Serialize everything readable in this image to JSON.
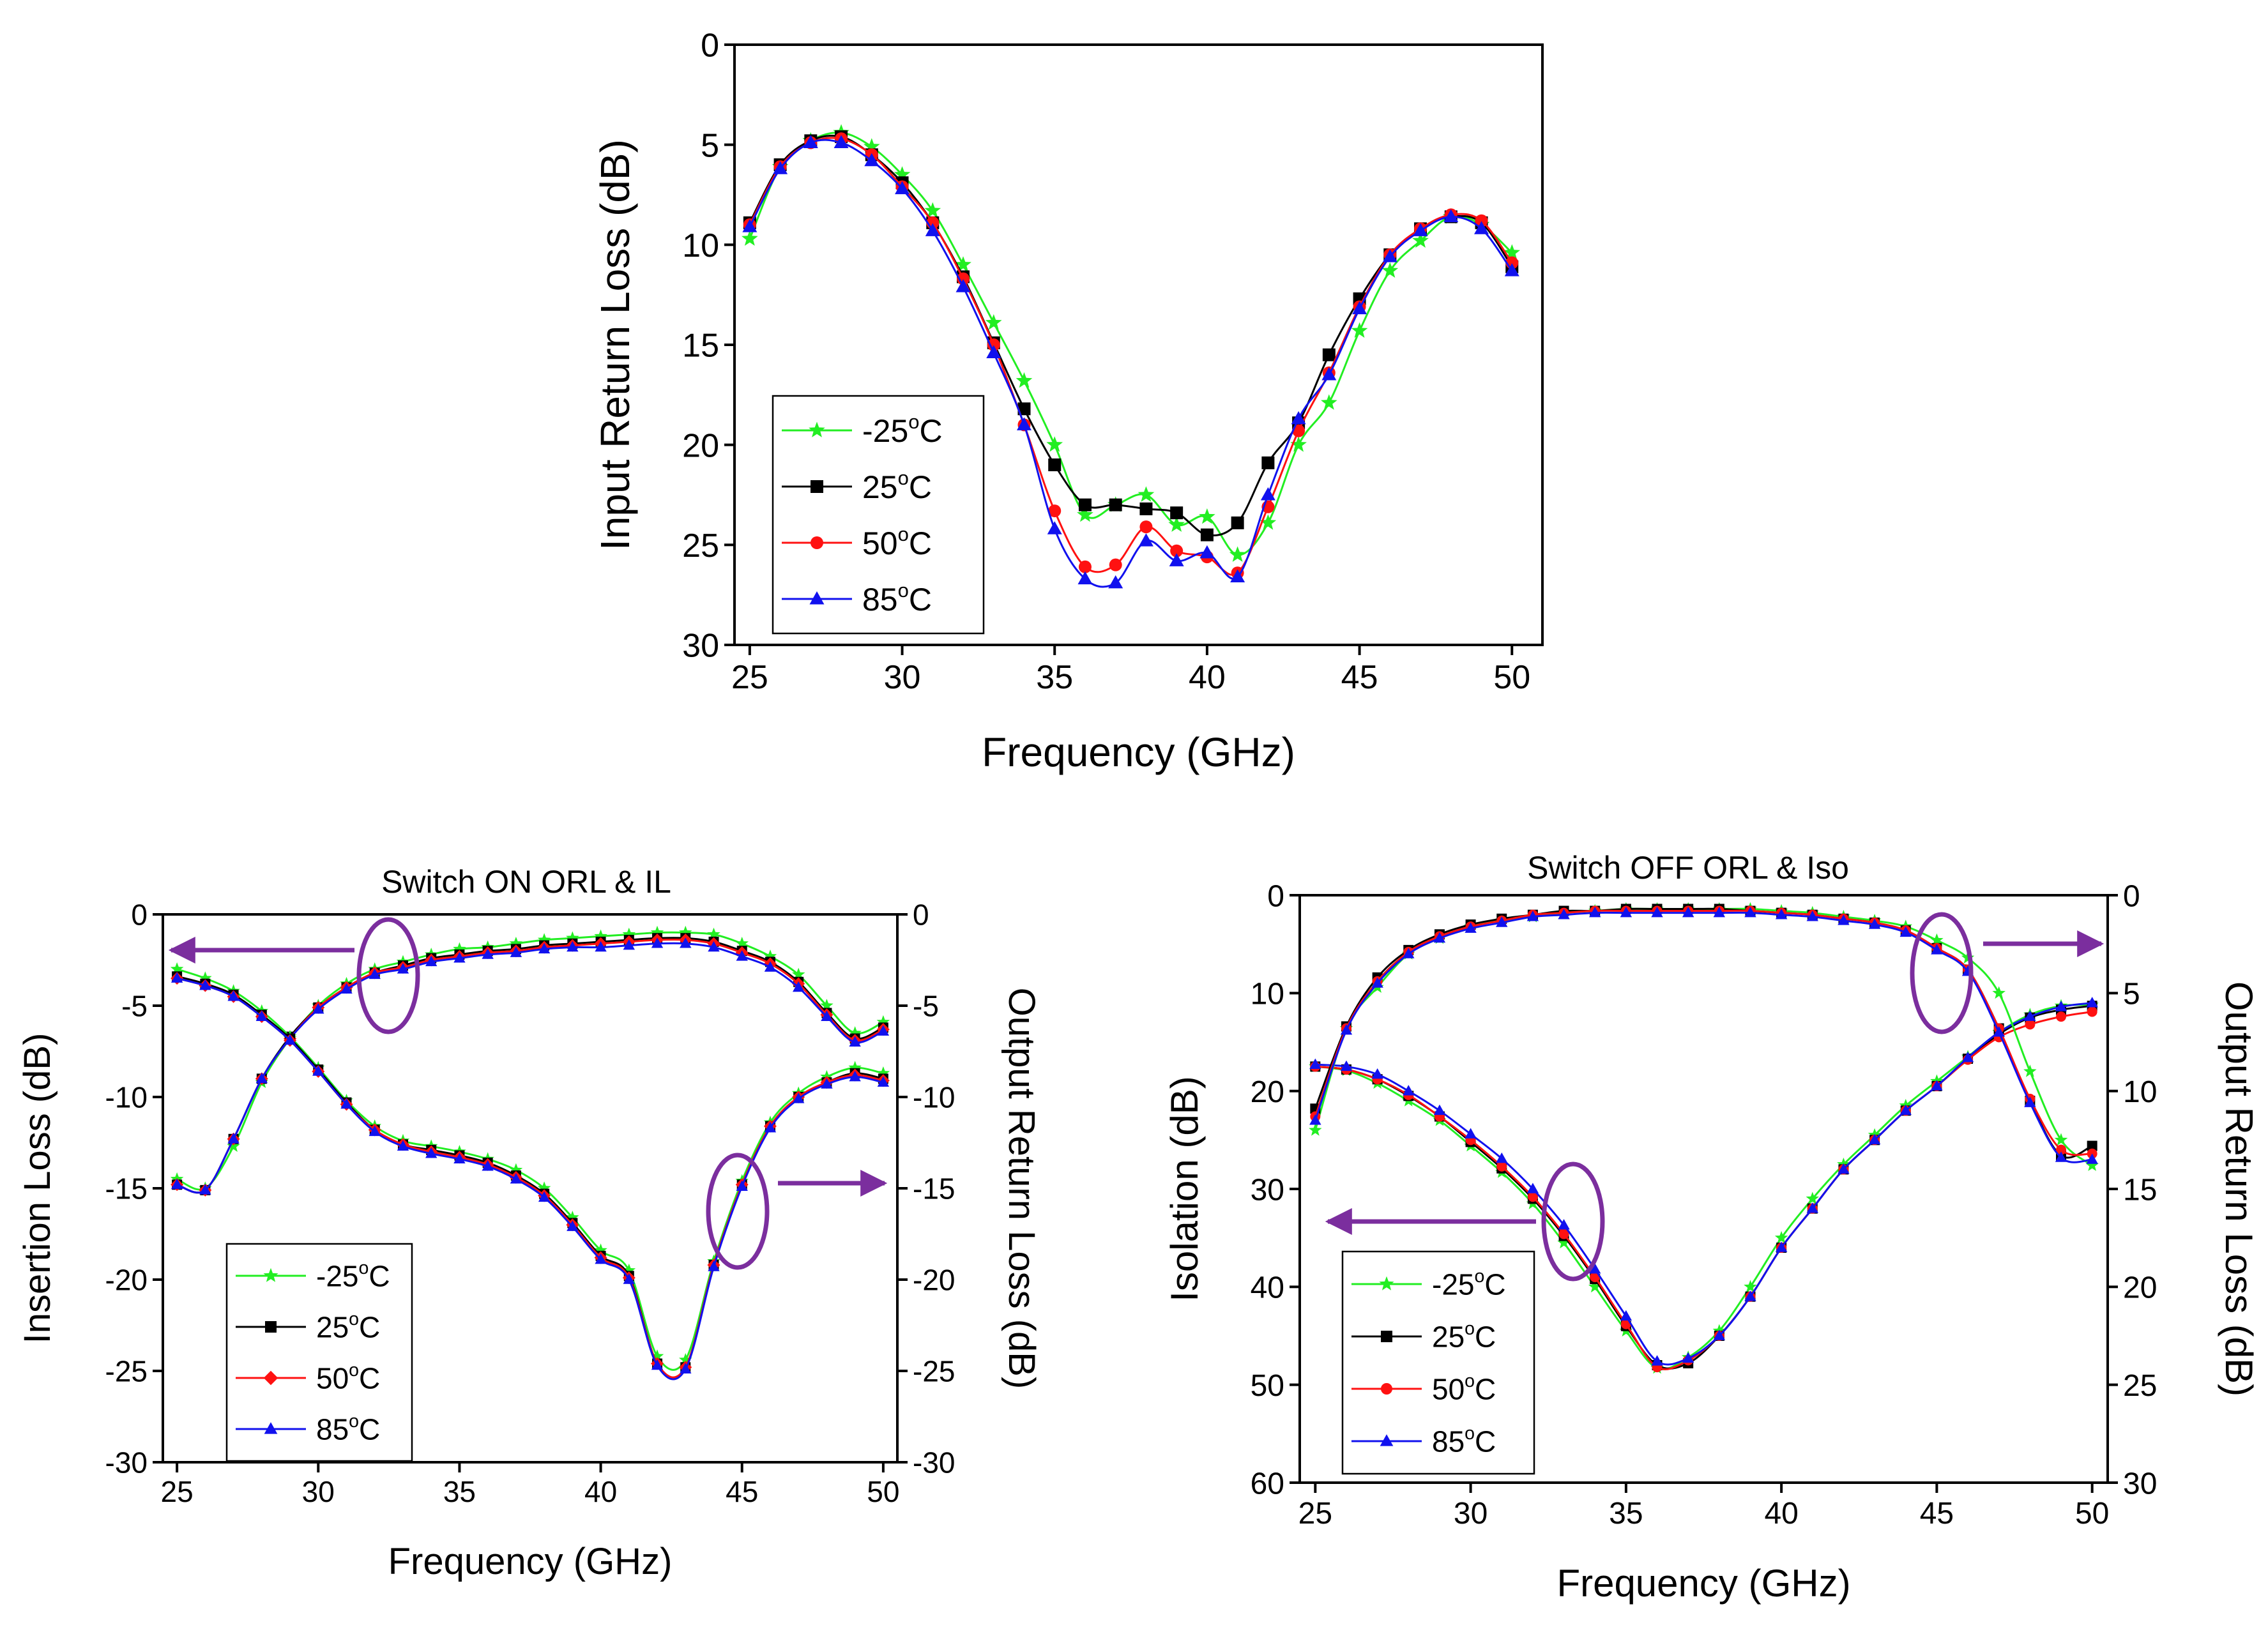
{
  "colors": {
    "c_m25": "#22ee22",
    "c_25": "#000000",
    "c_50": "#ff1111",
    "c_85": "#1111ee",
    "annotation": "#7b2e9e"
  },
  "chart_data": [
    {
      "id": "irl",
      "type": "line",
      "title": "",
      "xlabel": "Frequency (GHz)",
      "ylabel": "Input Return Loss (dB)",
      "xlim": [
        24.5,
        51
      ],
      "ylim": [
        0,
        30
      ],
      "y_inverted": true,
      "xticks": [
        25,
        30,
        35,
        40,
        45,
        50
      ],
      "yticks": [
        0,
        5,
        10,
        15,
        20,
        25,
        30
      ],
      "legend_position": "bottom-left",
      "x": [
        25,
        26,
        27,
        28,
        29,
        30,
        31,
        32,
        33,
        34,
        35,
        36,
        37,
        38,
        39,
        40,
        41,
        42,
        43,
        44,
        45,
        46,
        47,
        48,
        49,
        50
      ],
      "series": [
        {
          "name": "-25°C",
          "color_key": "c_m25",
          "marker": "star",
          "values": [
            9.7,
            6.1,
            4.8,
            4.4,
            5.1,
            6.5,
            8.3,
            11.0,
            13.9,
            16.8,
            20.0,
            23.5,
            23.0,
            22.5,
            24.0,
            23.6,
            25.5,
            23.9,
            20.0,
            17.9,
            14.3,
            11.3,
            9.8,
            8.6,
            9.0,
            10.4
          ]
        },
        {
          "name": "25°C",
          "color_key": "c_25",
          "marker": "square",
          "values": [
            8.9,
            6.0,
            4.8,
            4.6,
            5.5,
            6.9,
            8.9,
            11.6,
            14.9,
            18.2,
            21.0,
            23.0,
            23.0,
            23.2,
            23.4,
            24.5,
            23.9,
            20.9,
            18.9,
            15.5,
            12.7,
            10.5,
            9.2,
            8.6,
            8.9,
            11.1
          ]
        },
        {
          "name": "50°C",
          "color_key": "c_50",
          "marker": "circle",
          "values": [
            9.0,
            6.1,
            4.9,
            4.7,
            5.5,
            7.1,
            8.9,
            11.7,
            15.0,
            19.0,
            23.3,
            26.1,
            26.0,
            24.1,
            25.3,
            25.6,
            26.4,
            23.1,
            19.3,
            16.4,
            13.1,
            10.5,
            9.2,
            8.5,
            8.8,
            10.9
          ]
        },
        {
          "name": "85°C",
          "color_key": "c_85",
          "marker": "triangle",
          "values": [
            9.1,
            6.2,
            4.9,
            4.9,
            5.8,
            7.2,
            9.3,
            12.1,
            15.4,
            19.0,
            24.2,
            26.7,
            26.9,
            24.8,
            25.8,
            25.4,
            26.6,
            22.5,
            18.7,
            16.5,
            13.2,
            10.6,
            9.3,
            8.6,
            9.2,
            11.3
          ]
        }
      ]
    },
    {
      "id": "on",
      "type": "line",
      "title": "Switch ON ORL & IL",
      "xlabel": "Frequency (GHz)",
      "ylabel_left": "Insertion Loss (dB)",
      "ylabel_right": "Output Return Loss (dB)",
      "xlim": [
        24.5,
        50.5
      ],
      "ylim_left": [
        -30,
        0
      ],
      "ylim_right": [
        -30,
        0
      ],
      "xticks": [
        25,
        30,
        35,
        40,
        45,
        50
      ],
      "yticks_left": [
        0,
        -5,
        -10,
        -15,
        -20,
        -25,
        -30
      ],
      "yticks_right": [
        0,
        -5,
        -10,
        -15,
        -20,
        -25,
        -30
      ],
      "legend_position": "bottom-left",
      "x": [
        25,
        26,
        27,
        28,
        29,
        30,
        31,
        32,
        33,
        34,
        35,
        36,
        37,
        38,
        39,
        40,
        41,
        42,
        43,
        44,
        45,
        46,
        47,
        48,
        49,
        50
      ],
      "il_series": [
        {
          "name": "-25°C",
          "color_key": "c_m25",
          "marker": "star",
          "values": [
            -14.5,
            -15.0,
            -12.7,
            -9.2,
            -6.8,
            -5.0,
            -3.8,
            -3.0,
            -2.6,
            -2.2,
            -1.9,
            -1.8,
            -1.6,
            -1.4,
            -1.3,
            -1.2,
            -1.1,
            -1.0,
            -1.0,
            -1.1,
            -1.6,
            -2.3,
            -3.3,
            -5.0,
            -6.5,
            -5.9
          ]
        },
        {
          "name": "25°C",
          "color_key": "c_25",
          "marker": "square",
          "values": [
            -14.8,
            -15.1,
            -12.3,
            -9.0,
            -6.7,
            -5.1,
            -4.0,
            -3.2,
            -2.8,
            -2.4,
            -2.2,
            -2.0,
            -1.9,
            -1.7,
            -1.6,
            -1.5,
            -1.4,
            -1.3,
            -1.3,
            -1.5,
            -2.0,
            -2.6,
            -3.7,
            -5.4,
            -6.8,
            -6.2
          ]
        },
        {
          "name": "50°C",
          "color_key": "c_50",
          "marker": "diamond",
          "values": [
            -14.8,
            -15.1,
            -12.3,
            -9.0,
            -6.8,
            -5.1,
            -4.0,
            -3.2,
            -2.9,
            -2.5,
            -2.3,
            -2.1,
            -2.0,
            -1.8,
            -1.7,
            -1.6,
            -1.5,
            -1.4,
            -1.4,
            -1.6,
            -2.1,
            -2.7,
            -3.8,
            -5.5,
            -6.9,
            -6.3
          ]
        },
        {
          "name": "85°C",
          "color_key": "c_85",
          "marker": "triangle",
          "values": [
            -14.8,
            -15.1,
            -12.3,
            -9.0,
            -6.8,
            -5.2,
            -4.1,
            -3.3,
            -3.0,
            -2.6,
            -2.4,
            -2.2,
            -2.1,
            -1.9,
            -1.8,
            -1.8,
            -1.7,
            -1.6,
            -1.6,
            -1.8,
            -2.3,
            -2.9,
            -4.0,
            -5.6,
            -7.0,
            -6.4
          ]
        }
      ],
      "orl_series": [
        {
          "name": "-25°C",
          "color_key": "c_m25",
          "marker": "star",
          "values": [
            -3.0,
            -3.5,
            -4.2,
            -5.3,
            -6.7,
            -8.4,
            -10.2,
            -11.6,
            -12.4,
            -12.7,
            -13.0,
            -13.4,
            -14.0,
            -15.0,
            -16.6,
            -18.4,
            -19.5,
            -24.2,
            -24.4,
            -19.0,
            -14.6,
            -11.4,
            -9.8,
            -8.9,
            -8.4,
            -8.7
          ]
        },
        {
          "name": "25°C",
          "color_key": "c_25",
          "marker": "square",
          "values": [
            -3.4,
            -3.8,
            -4.4,
            -5.5,
            -6.8,
            -8.5,
            -10.3,
            -11.8,
            -12.6,
            -12.9,
            -13.2,
            -13.6,
            -14.3,
            -15.3,
            -16.9,
            -18.7,
            -19.8,
            -24.6,
            -24.8,
            -19.2,
            -14.8,
            -11.6,
            -10.0,
            -9.2,
            -8.7,
            -9.0
          ]
        },
        {
          "name": "50°C",
          "color_key": "c_50",
          "marker": "diamond",
          "values": [
            -3.5,
            -3.9,
            -4.5,
            -5.6,
            -6.9,
            -8.6,
            -10.4,
            -11.8,
            -12.6,
            -13.0,
            -13.3,
            -13.7,
            -14.4,
            -15.4,
            -17.0,
            -18.8,
            -19.9,
            -24.6,
            -24.8,
            -19.2,
            -14.8,
            -11.6,
            -10.0,
            -9.2,
            -8.8,
            -9.1
          ]
        },
        {
          "name": "85°C",
          "color_key": "c_85",
          "marker": "triangle",
          "values": [
            -3.5,
            -3.9,
            -4.5,
            -5.6,
            -6.9,
            -8.6,
            -10.4,
            -11.9,
            -12.7,
            -13.1,
            -13.4,
            -13.8,
            -14.5,
            -15.5,
            -17.1,
            -18.9,
            -20.0,
            -24.7,
            -24.9,
            -19.3,
            -14.9,
            -11.7,
            -10.1,
            -9.3,
            -8.9,
            -9.2
          ]
        }
      ]
    },
    {
      "id": "off",
      "type": "line",
      "title": "Switch OFF ORL & Iso",
      "xlabel": "Frequency (GHz)",
      "ylabel_left": "Isolation (dB)",
      "ylabel_right": "Output Return Loss (dB)",
      "xlim": [
        24.5,
        50.5
      ],
      "ylim_left": [
        0,
        60
      ],
      "ylim_right": [
        0,
        30
      ],
      "y_inverted": true,
      "xticks": [
        25,
        30,
        35,
        40,
        45,
        50
      ],
      "yticks_left": [
        0,
        10,
        20,
        30,
        40,
        50,
        60
      ],
      "yticks_right": [
        0,
        5,
        10,
        15,
        20,
        25,
        30
      ],
      "legend_position": "bottom-left",
      "x": [
        25,
        26,
        27,
        28,
        29,
        30,
        31,
        32,
        33,
        34,
        35,
        36,
        37,
        38,
        39,
        40,
        41,
        42,
        43,
        44,
        45,
        46,
        47,
        48,
        49,
        50
      ],
      "iso_series": [
        {
          "name": "-25°C",
          "color_key": "c_m25",
          "marker": "star",
          "values": [
            17.5,
            17.9,
            19.2,
            21.0,
            23.0,
            25.6,
            28.3,
            31.5,
            35.5,
            40.0,
            44.5,
            48.3,
            47.2,
            44.5,
            40.0,
            35.0,
            31.0,
            27.5,
            24.5,
            21.5,
            19.0,
            16.5,
            14.0,
            12.2,
            11.3,
            11.2
          ]
        },
        {
          "name": "25°C",
          "color_key": "c_25",
          "marker": "square",
          "values": [
            17.5,
            17.8,
            18.8,
            20.5,
            22.6,
            25.2,
            27.9,
            31.0,
            34.8,
            39.2,
            44.0,
            48.0,
            47.8,
            45.0,
            41.0,
            36.0,
            32.0,
            28.0,
            25.0,
            22.0,
            19.5,
            16.7,
            14.2,
            12.5,
            11.7,
            11.3
          ]
        },
        {
          "name": "50°C",
          "color_key": "c_50",
          "marker": "circle",
          "values": [
            17.5,
            17.8,
            18.8,
            20.4,
            22.6,
            25.0,
            27.7,
            30.8,
            34.6,
            39.0,
            43.8,
            48.2,
            47.5,
            45.0,
            41.0,
            36.0,
            32.0,
            28.0,
            25.0,
            22.0,
            19.5,
            16.8,
            14.5,
            13.2,
            12.4,
            11.9
          ]
        },
        {
          "name": "85°C",
          "color_key": "c_85",
          "marker": "triangle",
          "values": [
            17.3,
            17.5,
            18.3,
            20.0,
            22.0,
            24.4,
            26.9,
            30.0,
            33.7,
            38.2,
            43.0,
            47.6,
            47.3,
            45.0,
            41.0,
            36.0,
            32.0,
            28.0,
            25.0,
            22.0,
            19.5,
            16.6,
            14.0,
            12.4,
            11.4,
            11.0
          ]
        }
      ],
      "orl_series": [
        {
          "name": "-25°C",
          "color_key": "c_m25",
          "marker": "star",
          "values": [
            12.0,
            6.8,
            4.7,
            3.0,
            2.2,
            1.6,
            1.3,
            1.1,
            0.9,
            0.8,
            0.7,
            0.7,
            0.7,
            0.7,
            0.7,
            0.8,
            0.9,
            1.1,
            1.3,
            1.6,
            2.3,
            3.2,
            5.0,
            9.0,
            12.5,
            13.8
          ]
        },
        {
          "name": "25°C",
          "color_key": "c_25",
          "marker": "square",
          "values": [
            10.9,
            6.7,
            4.2,
            2.8,
            2.0,
            1.5,
            1.2,
            1.0,
            0.8,
            0.8,
            0.7,
            0.7,
            0.7,
            0.7,
            0.8,
            0.9,
            1.0,
            1.2,
            1.4,
            1.8,
            2.7,
            3.8,
            6.8,
            10.5,
            13.3,
            12.8
          ]
        },
        {
          "name": "50°C",
          "color_key": "c_50",
          "marker": "circle",
          "values": [
            11.3,
            6.8,
            4.4,
            2.9,
            2.1,
            1.6,
            1.3,
            1.0,
            0.9,
            0.8,
            0.8,
            0.8,
            0.8,
            0.8,
            0.8,
            0.9,
            1.0,
            1.2,
            1.4,
            1.8,
            2.7,
            3.8,
            6.8,
            10.4,
            13.0,
            13.2
          ]
        },
        {
          "name": "85°C",
          "color_key": "c_85",
          "marker": "triangle",
          "values": [
            11.5,
            6.9,
            4.5,
            3.0,
            2.2,
            1.7,
            1.4,
            1.1,
            1.0,
            0.9,
            0.9,
            0.9,
            0.9,
            0.9,
            0.9,
            1.0,
            1.1,
            1.3,
            1.5,
            1.9,
            2.8,
            3.9,
            7.0,
            10.6,
            13.4,
            13.5
          ]
        }
      ]
    }
  ]
}
